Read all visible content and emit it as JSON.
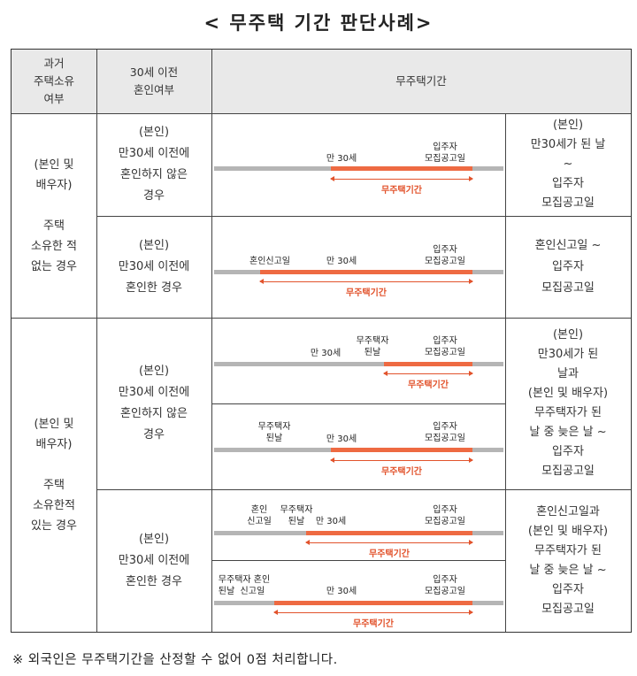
{
  "title": "< 무주택 기간 판단사례>",
  "headers": {
    "col1": "과거\n주택소유\n여부",
    "col2": "30세 이전\n혼인여부",
    "col3": "무주택기간"
  },
  "groups": [
    {
      "label": "(본인 및\n배우자)\n\n주택\n소유한 적\n없는 경우"
    },
    {
      "label": "(본인 및\n배우자)\n\n주택\n소유한적\n있는 경우"
    }
  ],
  "conditions": [
    "(본인)\n만30세 이전에\n혼인하지 않은\n경우",
    "(본인)\n만30세 이전에\n혼인한 경우",
    "(본인)\n만30세 이전에\n혼인하지 않은\n경우",
    "(본인)\n만30세 이전에\n혼인한 경우"
  ],
  "results": [
    "(본인)\n만30세가 된 날\n~\n입주자\n모집공고일",
    "혼인신고일 ~\n입주자\n모집공고일",
    "(본인)\n만30세가 된\n날과\n(본인 및 배우자)\n무주택자가 된\n날 중 늦은 날 ~\n입주자\n모집공고일",
    "혼인신고일과\n(본인 및 배우자)\n무주택자가 된\n날 중 늦은 날 ~\n입주자\n모집공고일"
  ],
  "timeline_labels": {
    "age30": "만 30세",
    "announce": "입주자\n모집공고일",
    "marriage": "혼인신고일",
    "homeless": "무주택자\n된날",
    "marriage_split": "혼인\n신고일",
    "homeless_marriage": "무주택자 혼인\n된날  신고일",
    "period": "무주택기간"
  },
  "colors": {
    "bar_gray": "#b5b5b5",
    "bar_red": "#ee6a42",
    "period_text": "#e2532c"
  },
  "footnote": "※ 외국인은 무주택기간을 산정할 수 없어 0점 처리합니다."
}
